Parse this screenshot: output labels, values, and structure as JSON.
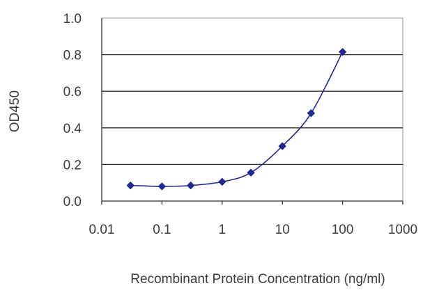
{
  "chart_data": {
    "type": "line",
    "xlabel": "Recombinant Protein Concentration (ng/ml)",
    "ylabel": "OD450",
    "x_scale": "log",
    "xlim": [
      0.01,
      1000
    ],
    "ylim": [
      0.0,
      1.0
    ],
    "x_ticks": [
      "0.01",
      "0.1",
      "1",
      "10",
      "100",
      "1000"
    ],
    "y_ticks": [
      "0.0",
      "0.2",
      "0.4",
      "0.6",
      "0.8",
      "1.0"
    ],
    "grid": "horizontal",
    "series": [
      {
        "x": [
          0.03,
          0.1,
          0.3,
          1,
          3,
          10,
          30,
          100
        ],
        "values": [
          0.085,
          0.08,
          0.085,
          0.105,
          0.155,
          0.3,
          0.48,
          0.815
        ],
        "color": "#1f2a8c",
        "marker": "diamond"
      }
    ]
  }
}
